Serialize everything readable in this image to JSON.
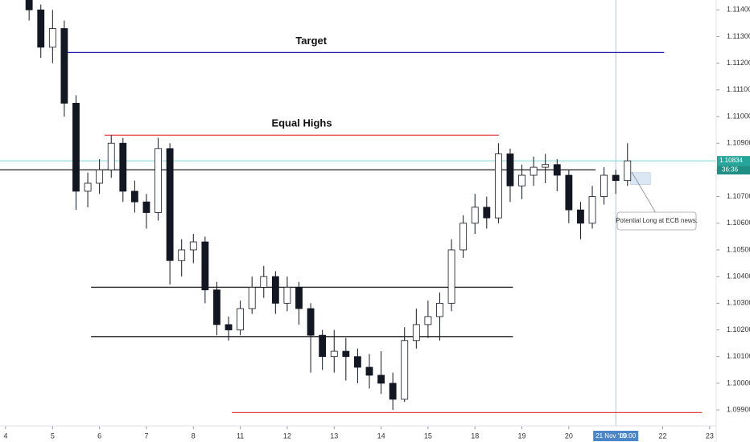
{
  "chart_data": {
    "type": "candlestick",
    "x": [
      0.5,
      0.75,
      1.0,
      1.25,
      1.5,
      1.75,
      2.0,
      2.25,
      2.5,
      2.75,
      3.0,
      3.25,
      3.5,
      3.75,
      4.0,
      4.25,
      4.5,
      4.75,
      5.0,
      5.25,
      5.5,
      5.75,
      6.0,
      6.25,
      6.5,
      6.75,
      7.0,
      7.25,
      7.5,
      7.75,
      8.0,
      8.25,
      8.5,
      8.75,
      9.0,
      9.25,
      9.5,
      9.75,
      10.0,
      10.25,
      10.5,
      10.75,
      11.0,
      11.25,
      11.5,
      11.75,
      12.0,
      12.25,
      12.5,
      12.75,
      13.0,
      13.25
    ],
    "open": [
      1.1145,
      1.114,
      1.1126,
      1.1133,
      1.1105,
      1.1072,
      1.1075,
      1.108,
      1.109,
      1.1072,
      1.1068,
      1.1064,
      1.1088,
      1.1046,
      1.105,
      1.1053,
      1.1035,
      1.1022,
      1.102,
      1.1028,
      1.1036,
      1.104,
      1.103,
      1.1036,
      1.1028,
      1.1018,
      1.101,
      1.1012,
      1.101,
      1.1006,
      1.1003,
      1.1,
      1.0994,
      1.1016,
      1.1022,
      1.1025,
      1.103,
      1.105,
      1.106,
      1.1066,
      1.1062,
      1.1086,
      1.1074,
      1.1078,
      1.1081,
      1.1082,
      1.1078,
      1.1065,
      1.106,
      1.107,
      1.1078,
      1.1076
    ],
    "high": [
      1.1149,
      1.1142,
      1.114,
      1.1136,
      1.1108,
      1.1079,
      1.1084,
      1.1093,
      1.1092,
      1.1076,
      1.1071,
      1.1092,
      1.109,
      1.1054,
      1.1056,
      1.1055,
      1.1038,
      1.1025,
      1.1031,
      1.104,
      1.1044,
      1.1042,
      1.104,
      1.1038,
      1.103,
      1.102,
      1.102,
      1.1017,
      1.1013,
      1.1011,
      1.1012,
      1.1004,
      1.1021,
      1.1028,
      1.1031,
      1.1034,
      1.1054,
      1.1063,
      1.1071,
      1.107,
      1.109,
      1.1088,
      1.1082,
      1.1085,
      1.1086,
      1.1084,
      1.108,
      1.1068,
      1.1074,
      1.1081,
      1.108,
      1.109
    ],
    "low": [
      1.1136,
      1.1122,
      1.112,
      1.11,
      1.1065,
      1.1066,
      1.1071,
      1.1077,
      1.1068,
      1.1064,
      1.1058,
      1.1061,
      1.1037,
      1.104,
      1.1045,
      1.103,
      1.1018,
      1.1016,
      1.1018,
      1.1026,
      1.1032,
      1.1026,
      1.1027,
      1.1022,
      1.1004,
      1.1005,
      1.1004,
      1.1001,
      1.1,
      1.0998,
      1.0996,
      1.099,
      1.0993,
      1.1013,
      1.1017,
      1.1016,
      1.1027,
      1.1047,
      1.1056,
      1.1058,
      1.106,
      1.1068,
      1.1069,
      1.1074,
      1.1075,
      1.1072,
      1.106,
      1.1054,
      1.1058,
      1.1067,
      1.1071,
      1.1074
    ],
    "close": [
      1.114,
      1.1126,
      1.1133,
      1.1105,
      1.1072,
      1.1075,
      1.108,
      1.109,
      1.1072,
      1.1068,
      1.1064,
      1.1088,
      1.1046,
      1.105,
      1.1053,
      1.1035,
      1.1022,
      1.102,
      1.1028,
      1.1036,
      1.104,
      1.103,
      1.1036,
      1.1028,
      1.1018,
      1.101,
      1.1012,
      1.101,
      1.1006,
      1.1003,
      1.1,
      1.0994,
      1.1016,
      1.1022,
      1.1025,
      1.103,
      1.105,
      1.106,
      1.1066,
      1.1062,
      1.1086,
      1.1074,
      1.1078,
      1.1081,
      1.1082,
      1.1078,
      1.1065,
      1.106,
      1.107,
      1.1078,
      1.1076,
      1.10834
    ],
    "up_color": "#ffffff",
    "down_color": "#131722",
    "xlim": [
      -0.12,
      15.14
    ],
    "ylim": [
      1.0984,
      1.11437
    ],
    "xticks": [
      {
        "value": 0,
        "label": "4"
      },
      {
        "value": 1,
        "label": "5"
      },
      {
        "value": 2,
        "label": "6"
      },
      {
        "value": 3,
        "label": "7"
      },
      {
        "value": 4,
        "label": "8"
      },
      {
        "value": 5,
        "label": "11"
      },
      {
        "value": 6,
        "label": "12"
      },
      {
        "value": 7,
        "label": "13"
      },
      {
        "value": 8,
        "label": "14"
      },
      {
        "value": 9,
        "label": "15"
      },
      {
        "value": 10,
        "label": "18"
      },
      {
        "value": 11,
        "label": "19"
      },
      {
        "value": 12,
        "label": "20"
      },
      {
        "value": 14,
        "label": "22"
      },
      {
        "value": 15,
        "label": "23"
      }
    ],
    "yticks": [
      {
        "value": 1.099,
        "label": "1.09900"
      },
      {
        "value": 1.1,
        "label": "1.10000"
      },
      {
        "value": 1.101,
        "label": "1.10100"
      },
      {
        "value": 1.102,
        "label": "1.10200"
      },
      {
        "value": 1.103,
        "label": "1.10300"
      },
      {
        "value": 1.104,
        "label": "1.10400"
      },
      {
        "value": 1.105,
        "label": "1.10500"
      },
      {
        "value": 1.106,
        "label": "1.10600"
      },
      {
        "value": 1.107,
        "label": "1.10700"
      },
      {
        "value": 1.108,
        "label": "1.10800"
      },
      {
        "value": 1.109,
        "label": "1.10900"
      },
      {
        "value": 1.11,
        "label": "1.11000"
      },
      {
        "value": 1.111,
        "label": "1.11100"
      },
      {
        "value": 1.112,
        "label": "1.11200"
      },
      {
        "value": 1.113,
        "label": "1.11300"
      },
      {
        "value": 1.114,
        "label": "1.11400"
      }
    ],
    "levels": [
      {
        "price": 1.1124,
        "x": [
          1.22,
          14.03
        ],
        "color": "#1c1ca8",
        "label": "Target"
      },
      {
        "price": 1.1093,
        "x": [
          2.11,
          10.51
        ],
        "color": "#e04848",
        "label": "Equal Highs"
      },
      {
        "price": 1.108,
        "x": [
          -0.12,
          12.57
        ],
        "color": "#202020"
      },
      {
        "price": 1.1036,
        "x": [
          1.82,
          10.81
        ],
        "color": "#202020"
      },
      {
        "price": 1.10175,
        "x": [
          1.82,
          10.81
        ],
        "color": "#202020"
      },
      {
        "price": 1.0989,
        "x": [
          4.82,
          14.84
        ],
        "color": "#e04848"
      }
    ],
    "zone": {
      "x": [
        13.31,
        13.74
      ],
      "price": [
        1.1079,
        1.10745
      ],
      "color": "#dbe6f5"
    },
    "annotation": "Potential Long at ECB news.",
    "last_price": {
      "value": 1.10834,
      "countdown": "36:36",
      "color": "#26a69a",
      "line_color": "#7fd8d8"
    },
    "crosshair": {
      "x": 13,
      "label": "21 Nov '19",
      "time": "00:00",
      "color": "#4a86c8"
    }
  }
}
